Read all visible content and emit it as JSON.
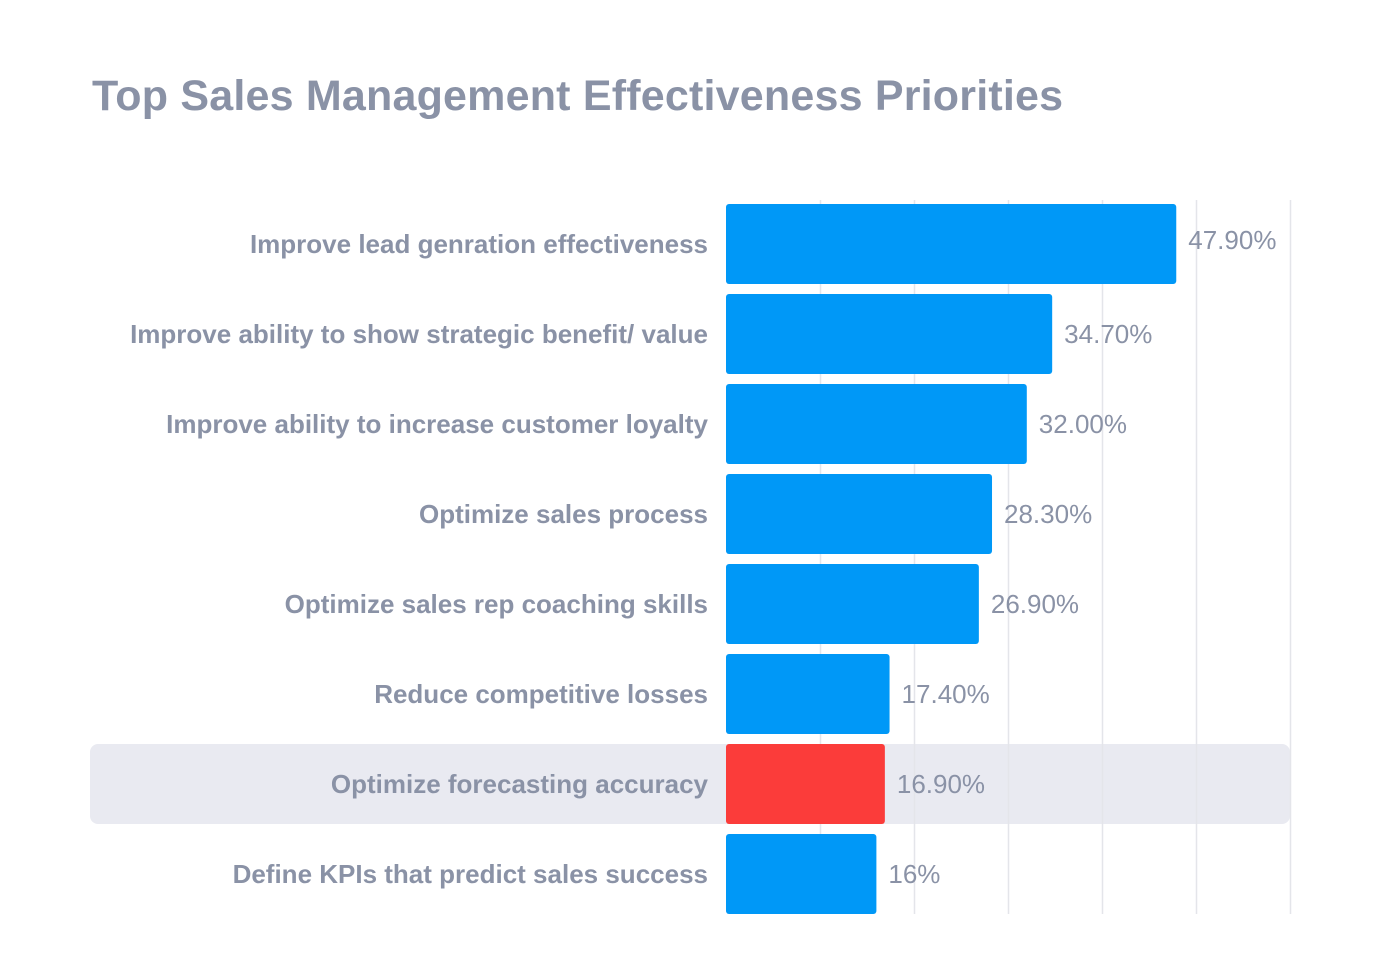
{
  "chart_data": {
    "type": "bar",
    "orientation": "horizontal",
    "title": "Top Sales Management Effectiveness Priorities",
    "xlabel": "",
    "ylabel": "",
    "categories": [
      "Improve lead genration effectiveness",
      "Improve ability to show strategic benefit/ value",
      "Improve ability to increase customer loyalty",
      "Optimize sales process",
      "Optimize sales rep coaching skills",
      "Reduce competitive losses",
      "Optimize forecasting accuracy",
      "Define KPIs that predict sales success"
    ],
    "values": [
      47.9,
      34.7,
      32.0,
      28.3,
      26.9,
      17.4,
      16.9,
      16
    ],
    "value_labels": [
      "47.90%",
      "34.70%",
      "32.00%",
      "28.30%",
      "26.90%",
      "17.40%",
      "16.90%",
      "16%"
    ],
    "xlim": [
      0,
      60
    ],
    "grid": true,
    "highlight_index": 6,
    "colors": {
      "bar": "#0098f7",
      "highlight_bar": "#fb3c3a",
      "highlight_band": "#e9eaf1",
      "grid": "#e4e5ea",
      "text": "#8a92a6"
    }
  }
}
